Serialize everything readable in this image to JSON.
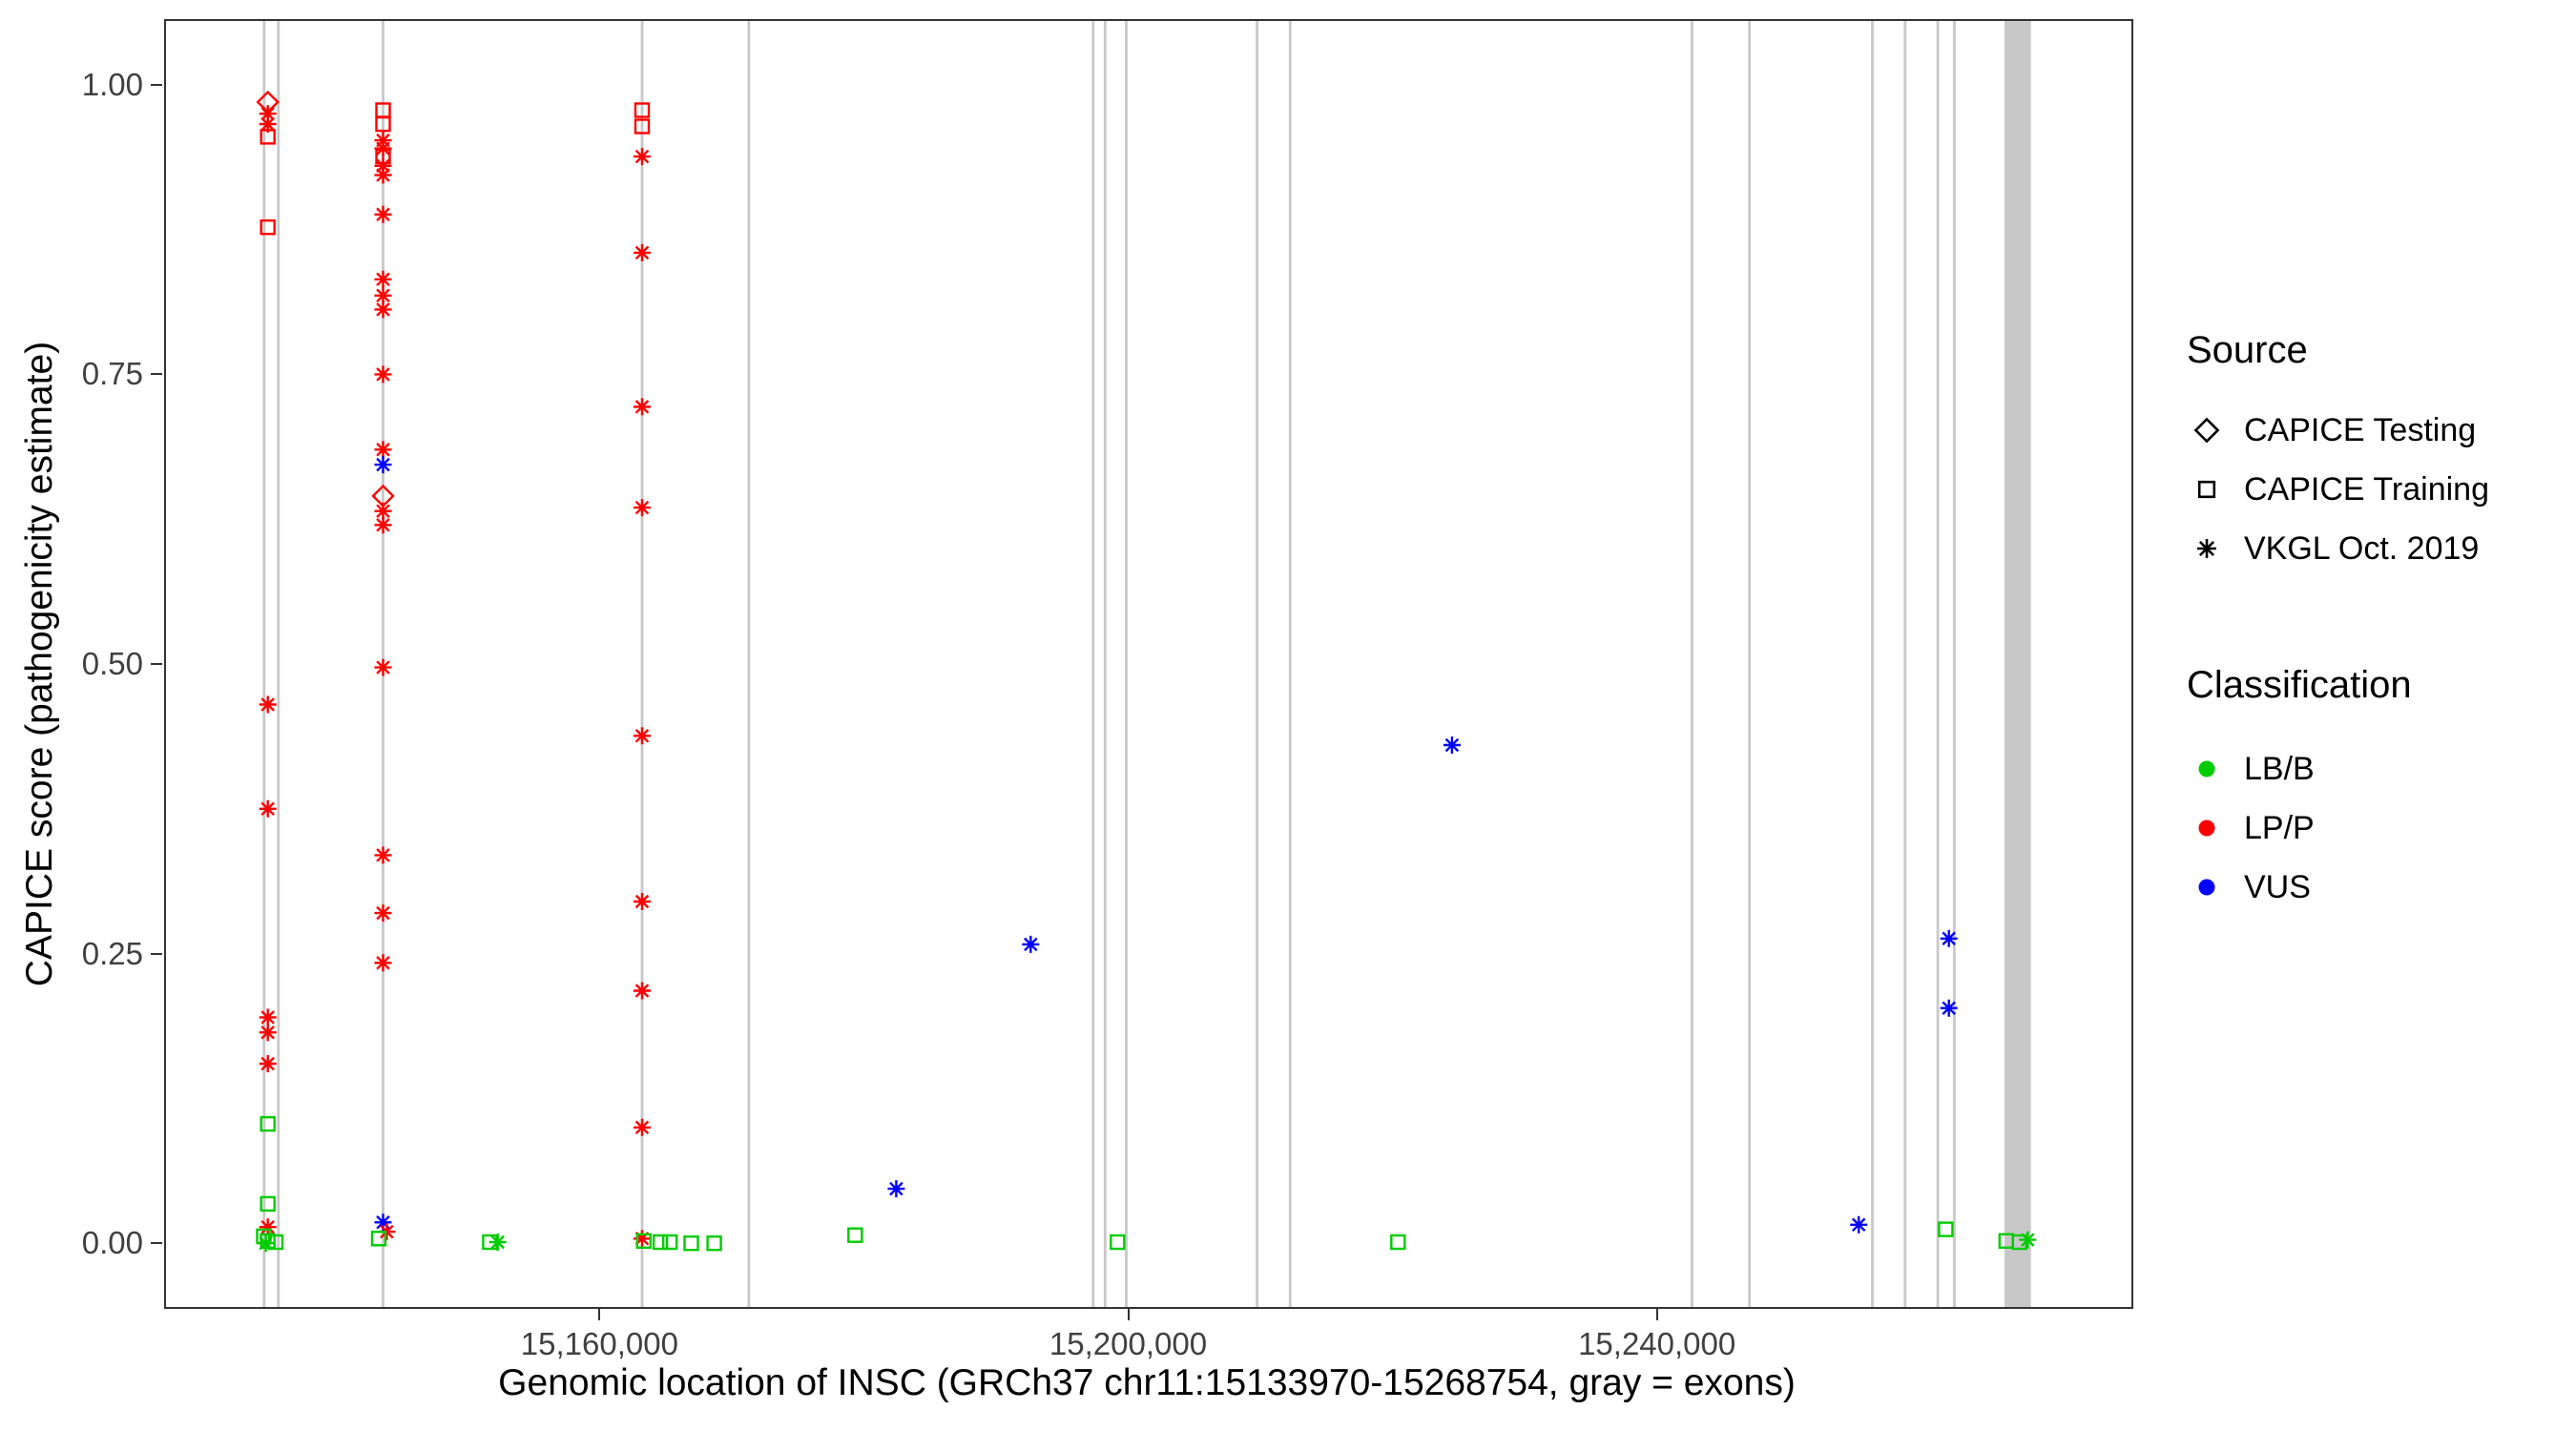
{
  "chart_data": {
    "type": "scatter",
    "xlabel": "Genomic location of INSC (GRCh37 chr11:15133970-15268754, gray = exons)",
    "ylabel": "CAPICE score (pathogenicity estimate)",
    "x_range": [
      15127200,
      15275900
    ],
    "y_range": [
      -0.055,
      1.055
    ],
    "x_ticks": [
      {
        "value": 15160000,
        "label": "15,160,000"
      },
      {
        "value": 15200000,
        "label": "15,200,000"
      },
      {
        "value": 15240000,
        "label": "15,240,000"
      }
    ],
    "y_ticks": [
      {
        "value": 0.0,
        "label": "0.00"
      },
      {
        "value": 0.25,
        "label": "0.25"
      },
      {
        "value": 0.5,
        "label": "0.50"
      },
      {
        "value": 0.75,
        "label": "0.75"
      },
      {
        "value": 1.0,
        "label": "1.00"
      }
    ],
    "style": {
      "exon_color": "#c8c8c8",
      "panel_border": "#333333",
      "tick_text": "#404040"
    },
    "series_colors": {
      "LB/B": "#00cc00",
      "LP/P": "#ff0000",
      "VUS": "#0000ff"
    },
    "source_shapes": {
      "CAPICE Testing": "diamond",
      "CAPICE Training": "square",
      "VKGL Oct. 2019": "asterisk"
    },
    "exons": [
      [
        15134520,
        15134720
      ],
      [
        15135600,
        15135800
      ],
      [
        15143520,
        15143720
      ],
      [
        15163120,
        15163320
      ],
      [
        15171200,
        15171400
      ],
      [
        15197250,
        15197450
      ],
      [
        15198150,
        15198350
      ],
      [
        15199750,
        15199950
      ],
      [
        15209650,
        15209850
      ],
      [
        15212150,
        15212350
      ],
      [
        15242550,
        15242750
      ],
      [
        15246900,
        15247100
      ],
      [
        15256200,
        15256400
      ],
      [
        15258680,
        15258880
      ],
      [
        15261150,
        15261350
      ],
      [
        15262400,
        15262600
      ],
      [
        15266300,
        15268300
      ]
    ],
    "points": [
      [
        15134900,
        0.985,
        "diamond",
        "LP/P"
      ],
      [
        15134900,
        0.975,
        "asterisk",
        "LP/P"
      ],
      [
        15134900,
        0.966,
        "asterisk",
        "LP/P"
      ],
      [
        15134900,
        0.955,
        "square",
        "LP/P"
      ],
      [
        15134900,
        0.877,
        "square",
        "LP/P"
      ],
      [
        15134900,
        0.465,
        "asterisk",
        "LP/P"
      ],
      [
        15134900,
        0.375,
        "asterisk",
        "LP/P"
      ],
      [
        15134900,
        0.195,
        "asterisk",
        "LP/P"
      ],
      [
        15134900,
        0.182,
        "asterisk",
        "LP/P"
      ],
      [
        15134900,
        0.155,
        "asterisk",
        "LP/P"
      ],
      [
        15134900,
        0.103,
        "square",
        "LB/B"
      ],
      [
        15134900,
        0.034,
        "square",
        "LB/B"
      ],
      [
        15134900,
        0.014,
        "asterisk",
        "LP/P"
      ],
      [
        15134600,
        0.006,
        "square",
        "LB/B"
      ],
      [
        15134900,
        0.002,
        "square",
        "LB/B"
      ],
      [
        15135500,
        0.001,
        "square",
        "LB/B"
      ],
      [
        15134750,
        0.0,
        "asterisk",
        "LB/B"
      ],
      [
        15143620,
        0.978,
        "square",
        "LP/P"
      ],
      [
        15143620,
        0.966,
        "square",
        "LP/P"
      ],
      [
        15143620,
        0.952,
        "asterisk",
        "LP/P"
      ],
      [
        15143620,
        0.945,
        "asterisk",
        "LP/P"
      ],
      [
        15143620,
        0.938,
        "square",
        "LP/P"
      ],
      [
        15143620,
        0.93,
        "asterisk",
        "LP/P"
      ],
      [
        15143620,
        0.922,
        "asterisk",
        "LP/P"
      ],
      [
        15143620,
        0.888,
        "asterisk",
        "LP/P"
      ],
      [
        15143620,
        0.832,
        "asterisk",
        "LP/P"
      ],
      [
        15143620,
        0.818,
        "asterisk",
        "LP/P"
      ],
      [
        15143620,
        0.806,
        "asterisk",
        "LP/P"
      ],
      [
        15143620,
        0.75,
        "asterisk",
        "LP/P"
      ],
      [
        15143620,
        0.685,
        "asterisk",
        "LP/P"
      ],
      [
        15143620,
        0.672,
        "asterisk",
        "VUS"
      ],
      [
        15143620,
        0.645,
        "diamond",
        "LP/P"
      ],
      [
        15143620,
        0.632,
        "asterisk",
        "LP/P"
      ],
      [
        15143620,
        0.62,
        "asterisk",
        "LP/P"
      ],
      [
        15143620,
        0.497,
        "asterisk",
        "LP/P"
      ],
      [
        15143620,
        0.335,
        "asterisk",
        "LP/P"
      ],
      [
        15143620,
        0.285,
        "asterisk",
        "LP/P"
      ],
      [
        15143620,
        0.242,
        "asterisk",
        "LP/P"
      ],
      [
        15143620,
        0.018,
        "asterisk",
        "VUS"
      ],
      [
        15143900,
        0.01,
        "asterisk",
        "LP/P"
      ],
      [
        15143300,
        0.004,
        "square",
        "LB/B"
      ],
      [
        15151700,
        0.001,
        "square",
        "LB/B"
      ],
      [
        15152300,
        0.001,
        "asterisk",
        "LB/B"
      ],
      [
        15163220,
        0.978,
        "square",
        "LP/P"
      ],
      [
        15163220,
        0.964,
        "square",
        "LP/P"
      ],
      [
        15163220,
        0.938,
        "asterisk",
        "LP/P"
      ],
      [
        15163220,
        0.855,
        "asterisk",
        "LP/P"
      ],
      [
        15163220,
        0.722,
        "asterisk",
        "LP/P"
      ],
      [
        15163220,
        0.635,
        "asterisk",
        "LP/P"
      ],
      [
        15163220,
        0.438,
        "asterisk",
        "LP/P"
      ],
      [
        15163220,
        0.295,
        "asterisk",
        "LP/P"
      ],
      [
        15163220,
        0.218,
        "asterisk",
        "LP/P"
      ],
      [
        15163220,
        0.1,
        "asterisk",
        "LP/P"
      ],
      [
        15163220,
        0.004,
        "asterisk",
        "LP/P"
      ],
      [
        15163350,
        0.002,
        "square",
        "LB/B"
      ],
      [
        15164600,
        0.001,
        "square",
        "LB/B"
      ],
      [
        15165330,
        0.001,
        "square",
        "LB/B"
      ],
      [
        15166940,
        0.0,
        "square",
        "LB/B"
      ],
      [
        15168680,
        0.0,
        "square",
        "LB/B"
      ],
      [
        15179340,
        0.007,
        "square",
        "LB/B"
      ],
      [
        15182450,
        0.047,
        "asterisk",
        "VUS"
      ],
      [
        15192620,
        0.258,
        "asterisk",
        "VUS"
      ],
      [
        15199190,
        0.001,
        "square",
        "LB/B"
      ],
      [
        15220410,
        0.001,
        "square",
        "LB/B"
      ],
      [
        15224500,
        0.43,
        "asterisk",
        "VUS"
      ],
      [
        15255270,
        0.016,
        "asterisk",
        "VUS"
      ],
      [
        15261850,
        0.012,
        "square",
        "LB/B"
      ],
      [
        15262090,
        0.263,
        "asterisk",
        "VUS"
      ],
      [
        15262090,
        0.203,
        "asterisk",
        "VUS"
      ],
      [
        15266430,
        0.002,
        "square",
        "LB/B"
      ],
      [
        15267430,
        0.001,
        "square",
        "LB/B"
      ],
      [
        15268050,
        0.003,
        "asterisk",
        "LB/B"
      ]
    ]
  },
  "legend": {
    "source": {
      "title": "Source",
      "items": [
        {
          "label": "CAPICE Testing",
          "shape": "diamond"
        },
        {
          "label": "CAPICE Training",
          "shape": "square"
        },
        {
          "label": "VKGL Oct. 2019",
          "shape": "asterisk"
        }
      ]
    },
    "classification": {
      "title": "Classification",
      "items": [
        {
          "label": "LB/B",
          "color": "#00cc00"
        },
        {
          "label": "LP/P",
          "color": "#ff0000"
        },
        {
          "label": "VUS",
          "color": "#0000ff"
        }
      ]
    }
  }
}
